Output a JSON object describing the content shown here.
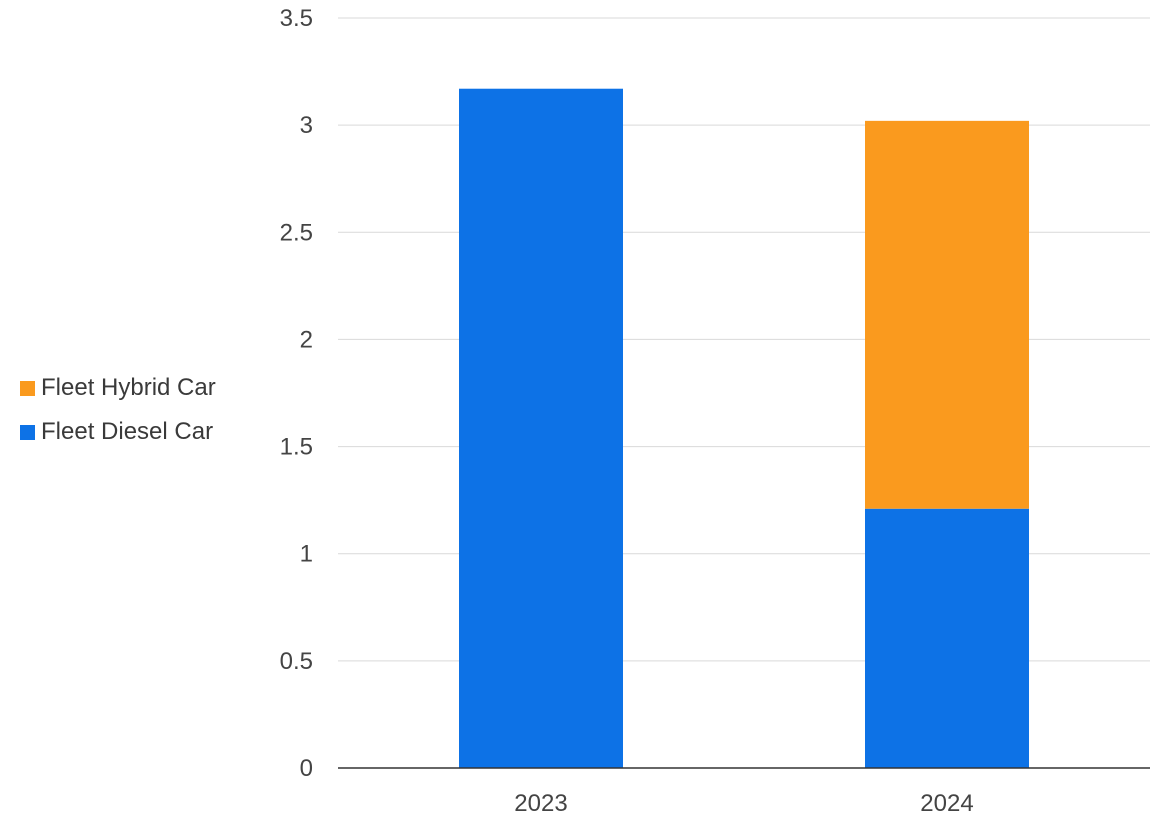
{
  "chart_data": {
    "type": "bar",
    "stacked": true,
    "categories": [
      "2023",
      "2024"
    ],
    "series": [
      {
        "name": "Fleet Diesel Car",
        "color": "#0d72e6",
        "values": [
          3.17,
          1.21
        ]
      },
      {
        "name": "Fleet Hybrid Car",
        "color": "#fa9a1e",
        "values": [
          0,
          1.81
        ]
      }
    ],
    "title": "",
    "xlabel": "",
    "ylabel": "",
    "ylim": [
      0,
      3.5
    ],
    "yticks": [
      0,
      0.5,
      1,
      1.5,
      2,
      2.5,
      3,
      3.5
    ],
    "ytick_labels": [
      "0",
      "0.5",
      "1",
      "1.5",
      "2",
      "2.5",
      "3",
      "3.5"
    ],
    "grid": true,
    "legend_position": "left",
    "legend_order": [
      "Fleet Hybrid Car",
      "Fleet Diesel Car"
    ]
  }
}
